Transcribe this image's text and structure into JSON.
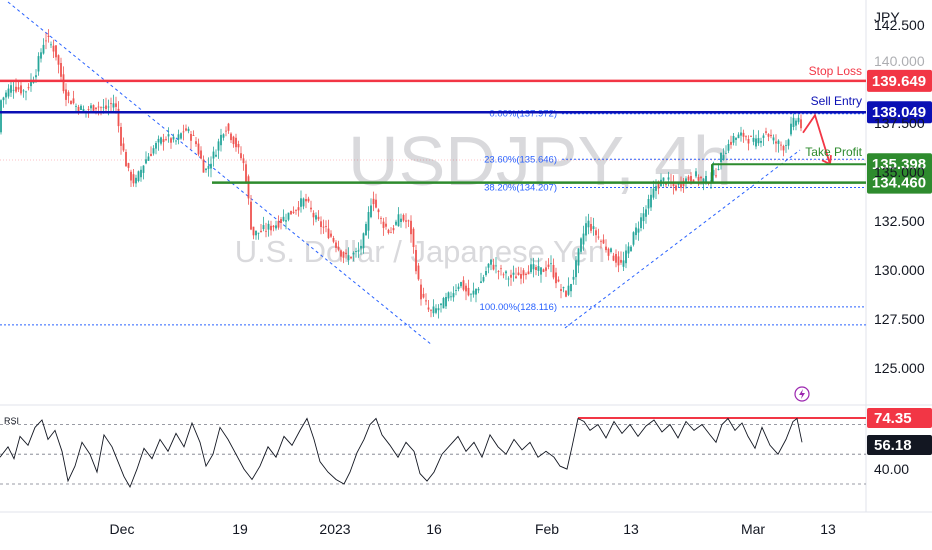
{
  "watermark": {
    "symbol": "USDJPY, 4h",
    "name": "U.S. Dollar / Japanese Yen"
  },
  "currency_label": "JPY",
  "rsi_label": "RSI",
  "colors": {
    "up": "#26a69a",
    "down": "#ef5350",
    "stop": "#f23645",
    "entry": "#0b10b4",
    "support": "#2e8b2e",
    "fib": "#2962ff",
    "rsi_line": "#131722",
    "rsi_high": "#f23645"
  },
  "chart_data": {
    "type": "candlestick",
    "price_axis": {
      "ticks": [
        "142.500",
        "140.000",
        "137.500",
        "135.000",
        "132.500",
        "130.000",
        "127.500",
        "125.000"
      ],
      "range": [
        124.0,
        145.5
      ]
    },
    "time_axis": {
      "labels": [
        "Dec",
        "19",
        "2023",
        "16",
        "Feb",
        "13",
        "Mar",
        "13"
      ]
    },
    "levels": [
      {
        "name": "Stop Loss",
        "value": 139.649,
        "label": "139.649",
        "color": "#f23645"
      },
      {
        "name": "Sell Entry",
        "value": 138.049,
        "label": "138.049",
        "color": "#0b10b4"
      },
      {
        "name": "Take Profit",
        "value": 135.398,
        "label": "135.398",
        "color": "#2e8b2e"
      },
      {
        "name": "",
        "value": 134.46,
        "label": "134.460",
        "color": "#2e8b2e"
      }
    ],
    "annotations": {
      "stop_loss": "Stop Loss",
      "sell_entry": "Sell Entry",
      "take_profit": "Take Profit"
    },
    "fibonacci": [
      {
        "label": "0.00%(137.972)",
        "value": 137.972
      },
      {
        "label": "23.60%(135.646)",
        "value": 135.646
      },
      {
        "label": "38.20%(134.207)",
        "value": 134.207
      },
      {
        "label": "100.00%(128.116)",
        "value": 128.116
      }
    ],
    "extra_levels": [
      128.116,
      127.2
    ],
    "price_path": [
      [
        0,
        138.6
      ],
      [
        12,
        139.4
      ],
      [
        25,
        139.1
      ],
      [
        35,
        140.0
      ],
      [
        45,
        141.9
      ],
      [
        55,
        141.2
      ],
      [
        65,
        139.0
      ],
      [
        75,
        138.4
      ],
      [
        85,
        138.1
      ],
      [
        95,
        138.4
      ],
      [
        105,
        138.2
      ],
      [
        115,
        138.6
      ],
      [
        120,
        136.8
      ],
      [
        128,
        135.0
      ],
      [
        135,
        134.4
      ],
      [
        145,
        135.6
      ],
      [
        155,
        136.3
      ],
      [
        165,
        136.8
      ],
      [
        175,
        136.5
      ],
      [
        185,
        137.2
      ],
      [
        195,
        136.6
      ],
      [
        205,
        135.0
      ],
      [
        215,
        136.0
      ],
      [
        225,
        137.4
      ],
      [
        235,
        136.5
      ],
      [
        245,
        135.2
      ],
      [
        252,
        131.8
      ],
      [
        262,
        132.0
      ],
      [
        275,
        132.3
      ],
      [
        290,
        132.9
      ],
      [
        305,
        133.6
      ],
      [
        315,
        132.6
      ],
      [
        330,
        131.8
      ],
      [
        345,
        130.6
      ],
      [
        358,
        130.9
      ],
      [
        365,
        131.8
      ],
      [
        372,
        133.8
      ],
      [
        380,
        132.6
      ],
      [
        390,
        131.9
      ],
      [
        400,
        132.7
      ],
      [
        410,
        132.3
      ],
      [
        420,
        128.8
      ],
      [
        430,
        127.8
      ],
      [
        440,
        128.1
      ],
      [
        450,
        128.7
      ],
      [
        460,
        129.4
      ],
      [
        470,
        128.6
      ],
      [
        480,
        129.3
      ],
      [
        490,
        130.4
      ],
      [
        500,
        129.9
      ],
      [
        510,
        129.6
      ],
      [
        520,
        129.8
      ],
      [
        530,
        130.1
      ],
      [
        540,
        129.9
      ],
      [
        550,
        130.3
      ],
      [
        560,
        129.0
      ],
      [
        567,
        128.8
      ],
      [
        575,
        130.0
      ],
      [
        580,
        131.2
      ],
      [
        587,
        132.5
      ],
      [
        595,
        131.9
      ],
      [
        605,
        131.2
      ],
      [
        615,
        130.6
      ],
      [
        622,
        130.2
      ],
      [
        630,
        131.3
      ],
      [
        640,
        132.5
      ],
      [
        648,
        133.3
      ],
      [
        656,
        134.3
      ],
      [
        665,
        134.6
      ],
      [
        675,
        134.2
      ],
      [
        685,
        134.6
      ],
      [
        695,
        134.8
      ],
      [
        705,
        134.5
      ],
      [
        715,
        134.9
      ],
      [
        723,
        136.0
      ],
      [
        733,
        136.7
      ],
      [
        745,
        136.9
      ],
      [
        755,
        136.4
      ],
      [
        765,
        137.1
      ],
      [
        775,
        136.5
      ],
      [
        785,
        136.3
      ],
      [
        792,
        137.4
      ],
      [
        798,
        137.8
      ],
      [
        803,
        137.0
      ]
    ],
    "projection": [
      [
        803,
        137.0
      ],
      [
        815,
        137.9
      ],
      [
        830,
        135.4
      ]
    ],
    "rsi": {
      "range": [
        20,
        90
      ],
      "levels": [
        70,
        50,
        30
      ],
      "current": 56.18,
      "current_label": "56.18",
      "high_level": 74.35,
      "high_label": "74.35",
      "ticks": [
        "40.00"
      ],
      "series": [
        [
          0,
          48
        ],
        [
          8,
          55
        ],
        [
          14,
          47
        ],
        [
          20,
          62
        ],
        [
          28,
          56
        ],
        [
          35,
          68
        ],
        [
          42,
          73
        ],
        [
          48,
          60
        ],
        [
          55,
          66
        ],
        [
          62,
          52
        ],
        [
          68,
          32
        ],
        [
          75,
          42
        ],
        [
          82,
          58
        ],
        [
          90,
          50
        ],
        [
          97,
          38
        ],
        [
          104,
          63
        ],
        [
          112,
          55
        ],
        [
          118,
          45
        ],
        [
          124,
          35
        ],
        [
          130,
          28
        ],
        [
          137,
          40
        ],
        [
          144,
          54
        ],
        [
          152,
          47
        ],
        [
          160,
          60
        ],
        [
          168,
          52
        ],
        [
          176,
          64
        ],
        [
          184,
          55
        ],
        [
          192,
          71
        ],
        [
          200,
          58
        ],
        [
          206,
          42
        ],
        [
          213,
          50
        ],
        [
          220,
          68
        ],
        [
          228,
          60
        ],
        [
          236,
          50
        ],
        [
          244,
          40
        ],
        [
          252,
          33
        ],
        [
          260,
          42
        ],
        [
          268,
          55
        ],
        [
          276,
          48
        ],
        [
          284,
          62
        ],
        [
          292,
          56
        ],
        [
          300,
          66
        ],
        [
          307,
          74
        ],
        [
          314,
          60
        ],
        [
          320,
          45
        ],
        [
          328,
          38
        ],
        [
          336,
          33
        ],
        [
          344,
          30
        ],
        [
          350,
          38
        ],
        [
          357,
          51
        ],
        [
          364,
          60
        ],
        [
          370,
          70
        ],
        [
          376,
          74
        ],
        [
          382,
          63
        ],
        [
          390,
          56
        ],
        [
          398,
          48
        ],
        [
          406,
          58
        ],
        [
          414,
          52
        ],
        [
          420,
          37
        ],
        [
          427,
          32
        ],
        [
          434,
          38
        ],
        [
          442,
          50
        ],
        [
          450,
          56
        ],
        [
          458,
          62
        ],
        [
          466,
          52
        ],
        [
          474,
          58
        ],
        [
          482,
          48
        ],
        [
          490,
          63
        ],
        [
          498,
          55
        ],
        [
          506,
          50
        ],
        [
          514,
          60
        ],
        [
          522,
          53
        ],
        [
          530,
          58
        ],
        [
          538,
          48
        ],
        [
          546,
          52
        ],
        [
          554,
          48
        ],
        [
          560,
          42
        ],
        [
          567,
          40
        ],
        [
          572,
          55
        ],
        [
          578,
          74
        ],
        [
          584,
          72
        ],
        [
          590,
          66
        ],
        [
          598,
          70
        ],
        [
          606,
          61
        ],
        [
          614,
          72
        ],
        [
          622,
          64
        ],
        [
          630,
          70
        ],
        [
          638,
          62
        ],
        [
          646,
          69
        ],
        [
          654,
          73
        ],
        [
          662,
          65
        ],
        [
          670,
          70
        ],
        [
          678,
          61
        ],
        [
          686,
          72
        ],
        [
          694,
          66
        ],
        [
          702,
          70
        ],
        [
          710,
          63
        ],
        [
          716,
          58
        ],
        [
          722,
          70
        ],
        [
          728,
          74
        ],
        [
          735,
          66
        ],
        [
          742,
          71
        ],
        [
          748,
          62
        ],
        [
          755,
          54
        ],
        [
          762,
          68
        ],
        [
          770,
          56
        ],
        [
          778,
          50
        ],
        [
          786,
          60
        ],
        [
          793,
          72
        ],
        [
          797,
          74
        ],
        [
          802,
          58
        ]
      ]
    }
  }
}
